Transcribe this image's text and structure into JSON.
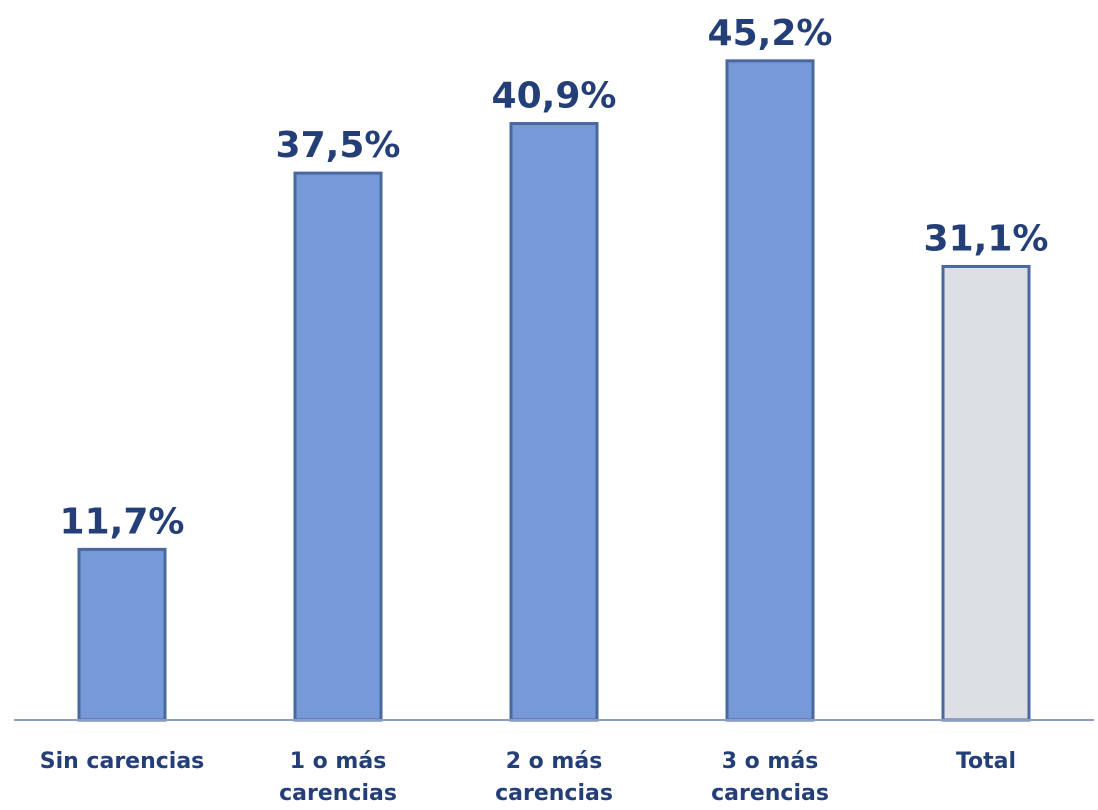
{
  "chart_data": {
    "type": "bar",
    "categories": [
      "Sin carencias",
      "1 o más carencias",
      "2 o más carencias",
      "3 o más carencias",
      "Total"
    ],
    "category_lines": [
      [
        "Sin carencias"
      ],
      [
        "1 o más",
        "carencias"
      ],
      [
        "2 o más",
        "carencias"
      ],
      [
        "3 o más",
        "carencias"
      ],
      [
        "Total"
      ]
    ],
    "values": [
      11.7,
      37.5,
      40.9,
      45.2,
      31.1
    ],
    "value_labels": [
      "11,7%",
      "37,5%",
      "40,9%",
      "45,2%",
      "31,1%"
    ],
    "ylim": [
      0,
      48
    ],
    "grid": false,
    "legend": "none",
    "colors": {
      "bar": "#7799d8",
      "bar_highlight": "#dcdfe4",
      "bar_border": "#4a679e",
      "highlight_border": "#4a679e",
      "axis": "#8a9cc0"
    },
    "highlight_index": 4
  }
}
